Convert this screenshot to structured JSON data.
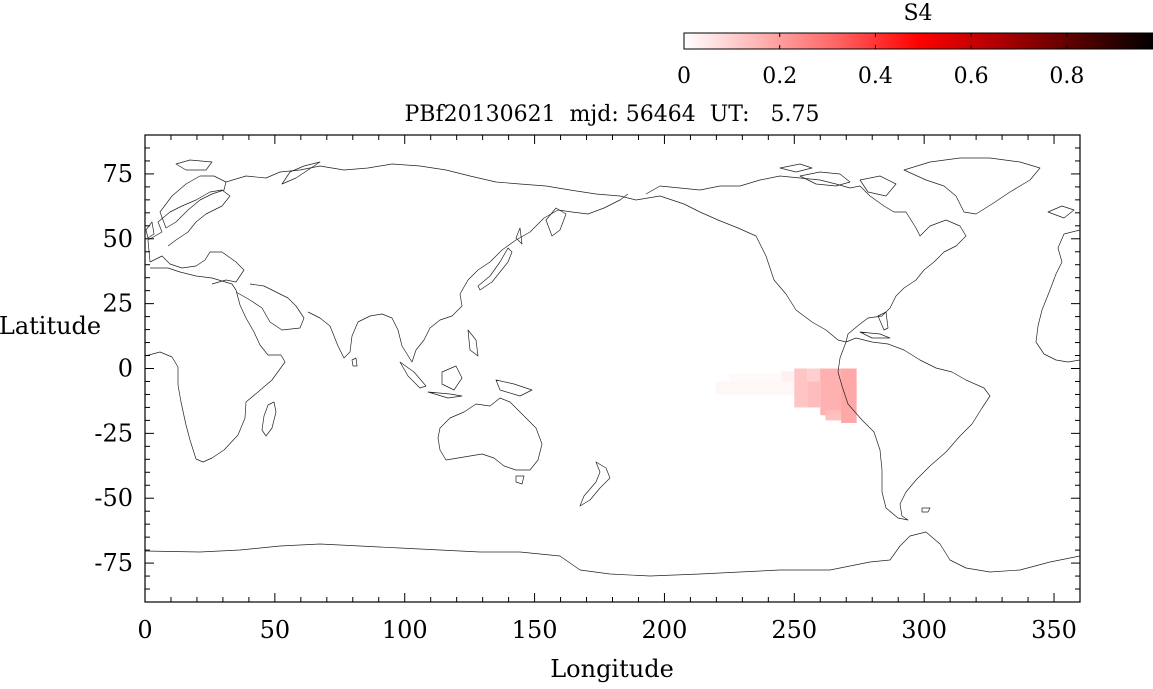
{
  "colorbar": {
    "title": "S4",
    "ticks": [
      0,
      0.2,
      0.4,
      0.6,
      0.8
    ],
    "tick_labels": [
      "0",
      "0.2",
      "0.4",
      "0.6",
      "0.8"
    ],
    "range": [
      0,
      0.98
    ],
    "colors": [
      "#ffffff",
      "#ffb0b0",
      "#ff6060",
      "#ff0000",
      "#b00000",
      "#5a0000",
      "#000000"
    ]
  },
  "plot_title": "PBf20130621  mjd: 56464  UT:   5.75",
  "chart_data": {
    "type": "heatmap",
    "xlabel": "Longitude",
    "ylabel": "Latitude",
    "xlim": [
      0,
      360
    ],
    "ylim": [
      -90,
      90
    ],
    "xticks": [
      0,
      50,
      100,
      150,
      200,
      250,
      300,
      350
    ],
    "yticks": [
      75,
      50,
      25,
      0,
      -25,
      -50,
      -75
    ],
    "xtick_labels": [
      "0",
      "50",
      "100",
      "150",
      "200",
      "250",
      "300",
      "350"
    ],
    "ytick_labels": [
      "75",
      "50",
      "25",
      "0",
      "-25",
      "-50",
      "-75"
    ],
    "cells": [
      {
        "lon0": 220,
        "lon1": 250,
        "lat0": -10,
        "lat1": -5,
        "s4": 0.02
      },
      {
        "lon0": 225,
        "lon1": 245,
        "lat0": -5,
        "lat1": -2,
        "s4": 0.01
      },
      {
        "lon0": 245,
        "lon1": 250,
        "lat0": -5,
        "lat1": -1,
        "s4": 0.03
      },
      {
        "lon0": 250,
        "lon1": 255,
        "lat0": -15,
        "lat1": 0,
        "s4": 0.12
      },
      {
        "lon0": 255,
        "lon1": 260,
        "lat0": -15,
        "lat1": -5,
        "s4": 0.14
      },
      {
        "lon0": 255,
        "lon1": 262,
        "lat0": -5,
        "lat1": 0,
        "s4": 0.1
      },
      {
        "lon0": 260,
        "lon1": 268,
        "lat0": -18,
        "lat1": 0,
        "s4": 0.16
      },
      {
        "lon0": 268,
        "lon1": 274,
        "lat0": -21,
        "lat1": 0,
        "s4": 0.18
      },
      {
        "lon0": 262,
        "lon1": 268,
        "lat0": -20,
        "lat1": -16,
        "s4": 0.13
      }
    ]
  }
}
